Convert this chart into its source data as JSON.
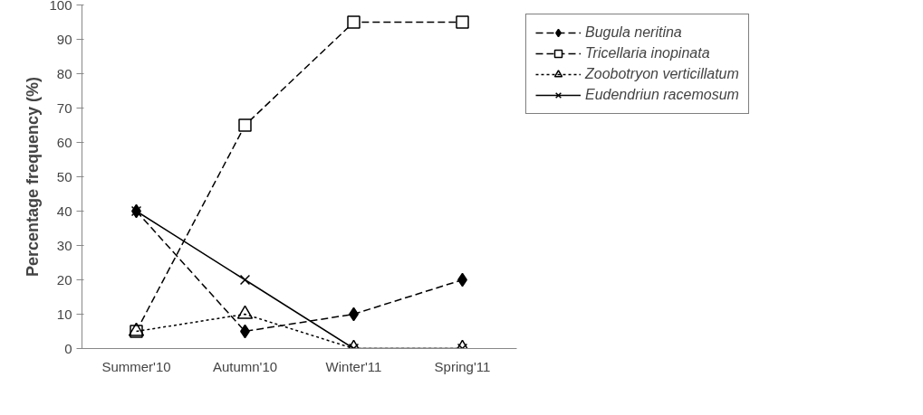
{
  "chart_data": {
    "type": "line",
    "ylabel": "Percentage frequency (%)",
    "categories": [
      "Summer'10",
      "Autumn'10",
      "Winter'11",
      "Spring'11"
    ],
    "series": [
      {
        "name": "Bugula neritina",
        "color": "#000000",
        "values": [
          40,
          5,
          10,
          20
        ],
        "marker": "diamond",
        "line_style": "dashed"
      },
      {
        "name": "Tricellaria inopinata",
        "color": "#000000",
        "values": [
          5,
          65,
          95,
          95
        ],
        "marker": "square",
        "line_style": "dashed"
      },
      {
        "name": "Zoobotryon verticillatum",
        "color": "#000000",
        "values": [
          5,
          10,
          0,
          0
        ],
        "marker": "triangle",
        "line_style": "dotted"
      },
      {
        "name": "Eudendriun racemosum",
        "color": "#000000",
        "values": [
          40,
          20,
          0,
          0
        ],
        "marker": "cross",
        "line_style": "solid"
      }
    ],
    "ylim": [
      0,
      100
    ],
    "yticks": [
      0,
      10,
      20,
      30,
      40,
      50,
      60,
      70,
      80,
      90,
      100
    ],
    "grid": false,
    "legend": "top right"
  }
}
